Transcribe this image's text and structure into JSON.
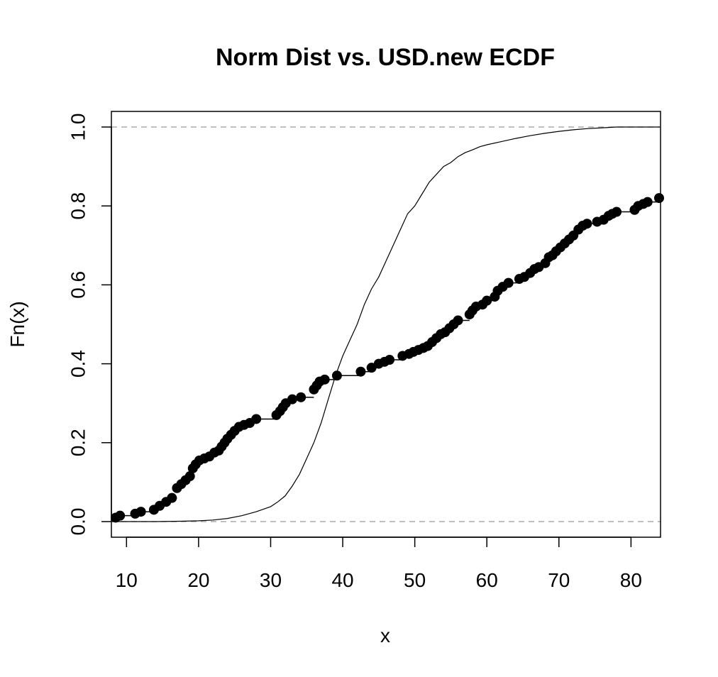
{
  "chart_data": {
    "type": "line",
    "title": "Norm Dist vs. USD.new ECDF",
    "xlabel": "x",
    "ylabel": "Fn(x)",
    "xlim": [
      8,
      84
    ],
    "ylim": [
      0,
      1
    ],
    "x_ticks": [
      10,
      20,
      30,
      40,
      50,
      60,
      70,
      80
    ],
    "y_ticks": [
      0.0,
      0.2,
      0.4,
      0.6,
      0.8,
      1.0
    ],
    "x_tick_labels": [
      "10",
      "20",
      "30",
      "40",
      "50",
      "60",
      "70",
      "80"
    ],
    "y_tick_labels": [
      "0.0",
      "0.2",
      "0.4",
      "0.6",
      "0.8",
      "1.0"
    ],
    "reference_lines": [
      0,
      1
    ],
    "grid": false,
    "colors": {
      "points": "#000000",
      "curve": "#000000",
      "reference": "#aaaaaa"
    },
    "series": [
      {
        "kind": "ecdf-points",
        "x": [
          8.5,
          9.1,
          11.2,
          12.0,
          13.8,
          14.6,
          15.5,
          16.3,
          17.0,
          17.6,
          18.2,
          18.8,
          19.2,
          19.6,
          20.1,
          20.8,
          21.5,
          22.2,
          22.8,
          23.2,
          23.6,
          24.0,
          24.5,
          25.0,
          25.6,
          26.3,
          27.1,
          28.0,
          30.8,
          31.3,
          31.7,
          32.1,
          33.0,
          34.2,
          36.0,
          36.4,
          36.8,
          37.5,
          39.2,
          42.5,
          44.0,
          45.0,
          45.8,
          46.5,
          48.3,
          49.2,
          49.8,
          50.5,
          51.2,
          51.8,
          52.4,
          53.0,
          53.6,
          54.2,
          54.8,
          55.4,
          56.0,
          57.6,
          58.0,
          58.5,
          59.4,
          60.0,
          61.1,
          61.5,
          62.2,
          63.0,
          64.5,
          65.2,
          66.0,
          66.6,
          67.2,
          68.1,
          68.6,
          69.1,
          69.6,
          70.2,
          70.8,
          71.4,
          72.0,
          72.7,
          73.3,
          73.9,
          75.3,
          76.2,
          76.9,
          77.4,
          78.0,
          80.5,
          81.0,
          81.7,
          82.3,
          83.9
        ],
        "y": [
          0.01,
          0.015,
          0.02,
          0.025,
          0.03,
          0.04,
          0.05,
          0.06,
          0.085,
          0.095,
          0.105,
          0.115,
          0.135,
          0.145,
          0.155,
          0.16,
          0.165,
          0.175,
          0.18,
          0.19,
          0.2,
          0.21,
          0.22,
          0.23,
          0.24,
          0.245,
          0.25,
          0.26,
          0.27,
          0.28,
          0.29,
          0.3,
          0.31,
          0.315,
          0.335,
          0.345,
          0.355,
          0.36,
          0.37,
          0.38,
          0.39,
          0.4,
          0.405,
          0.41,
          0.42,
          0.425,
          0.43,
          0.435,
          0.44,
          0.445,
          0.455,
          0.465,
          0.475,
          0.48,
          0.49,
          0.5,
          0.51,
          0.525,
          0.535,
          0.545,
          0.55,
          0.56,
          0.57,
          0.585,
          0.595,
          0.605,
          0.615,
          0.62,
          0.63,
          0.64,
          0.645,
          0.655,
          0.67,
          0.675,
          0.685,
          0.695,
          0.705,
          0.715,
          0.725,
          0.74,
          0.75,
          0.755,
          0.76,
          0.765,
          0.775,
          0.78,
          0.785,
          0.79,
          0.8,
          0.805,
          0.81,
          0.82
        ]
      },
      {
        "kind": "smooth-cdf",
        "x": [
          8,
          14,
          18,
          20,
          22,
          24,
          26,
          28,
          30,
          31,
          32,
          33,
          34,
          35,
          36,
          37,
          38,
          39,
          40,
          41,
          42,
          43,
          44,
          45,
          46,
          47,
          48,
          49,
          50,
          51,
          52,
          53,
          54,
          55,
          56,
          57,
          58,
          59,
          60,
          62,
          64,
          66,
          68,
          70,
          72,
          74,
          76,
          78,
          84
        ],
        "y": [
          0.0,
          0.0,
          0.001,
          0.002,
          0.004,
          0.008,
          0.015,
          0.025,
          0.038,
          0.05,
          0.065,
          0.09,
          0.12,
          0.16,
          0.2,
          0.25,
          0.31,
          0.37,
          0.42,
          0.46,
          0.5,
          0.55,
          0.59,
          0.62,
          0.66,
          0.7,
          0.74,
          0.78,
          0.8,
          0.83,
          0.86,
          0.88,
          0.9,
          0.91,
          0.925,
          0.935,
          0.942,
          0.95,
          0.955,
          0.963,
          0.971,
          0.978,
          0.984,
          0.989,
          0.993,
          0.996,
          0.998,
          1.0,
          1.0
        ]
      }
    ]
  }
}
